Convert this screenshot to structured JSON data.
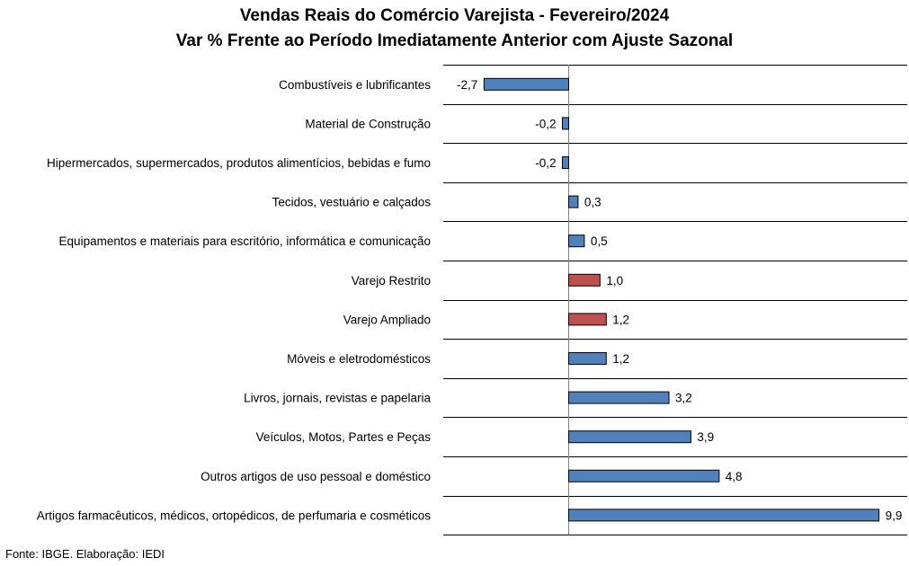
{
  "chart_data": {
    "type": "bar",
    "orientation": "horizontal",
    "title": "Vendas Reais do Comércio Varejista - Fevereiro/2024",
    "subtitle": "Var % Frente ao Período Imediatamente Anterior com Ajuste Sazonal",
    "categories": [
      "Combustíveis e lubrificantes",
      "Material de Construção",
      "Hipermercados, supermercados, produtos alimentícios, bebidas e fumo",
      "Tecidos, vestuário e calçados",
      "Equipamentos e materiais para escritório, informática e comunicação",
      "Varejo Restrito",
      "Varejo Ampliado",
      "Móveis e eletrodomésticos",
      "Livros, jornais, revistas e papelaria",
      "Veículos, Motos, Partes e Peças",
      "Outros artigos de uso pessoal e doméstico",
      "Artigos farmacêuticos, médicos, ortopédicos, de perfumaria e cosméticos"
    ],
    "values": [
      -2.7,
      -0.2,
      -0.2,
      0.3,
      0.5,
      1.0,
      1.2,
      1.2,
      3.2,
      3.9,
      4.8,
      9.9
    ],
    "value_labels": [
      "-2,7",
      "-0,2",
      "-0,2",
      "0,3",
      "0,5",
      "1,0",
      "1,2",
      "1,2",
      "3,2",
      "3,9",
      "4,8",
      "9,9"
    ],
    "highlight": [
      false,
      false,
      false,
      false,
      false,
      true,
      true,
      false,
      false,
      false,
      false,
      false
    ],
    "colors": {
      "default": "#4F81BD",
      "highlight": "#C0504D",
      "border": "#000000",
      "gridline": "#000000"
    },
    "xlim": [
      -4.0,
      10.8
    ],
    "grid": true,
    "legend": "none"
  },
  "footer": "Fonte: IBGE. Elaboração: IEDI"
}
